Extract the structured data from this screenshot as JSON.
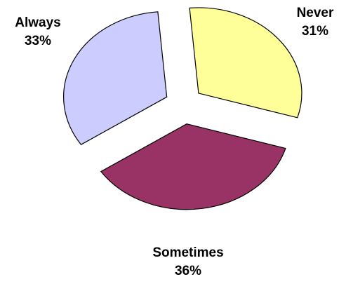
{
  "chart_data": {
    "type": "pie",
    "title": "",
    "slices": [
      {
        "label": "Never",
        "value": 31,
        "value_label": "31%",
        "color": "#FFFF99"
      },
      {
        "label": "Sometimes",
        "value": 36,
        "value_label": "36%",
        "color": "#993366"
      },
      {
        "label": "Always",
        "value": 33,
        "value_label": "33%",
        "color": "#CCCCFF"
      }
    ],
    "exploded": true,
    "outline_color": "#000000"
  }
}
